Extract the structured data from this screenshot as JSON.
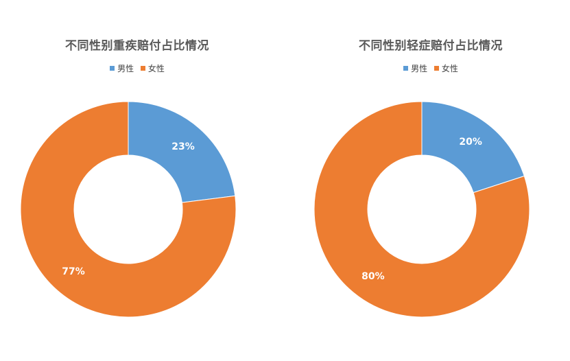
{
  "colors": {
    "male": "#5B9BD5",
    "female": "#ED7D31"
  },
  "chart_data": [
    {
      "type": "pie",
      "variant": "donut",
      "title": "不同性别重疾赔付占比情况",
      "legend": [
        "男性",
        "女性"
      ],
      "legend_position": "top",
      "categories": [
        "男性",
        "女性"
      ],
      "values": [
        23,
        77
      ],
      "labels": [
        "23%",
        "77%"
      ]
    },
    {
      "type": "pie",
      "variant": "donut",
      "title": "不同性别轻症赔付占比情况",
      "legend": [
        "男性",
        "女性"
      ],
      "legend_position": "top",
      "categories": [
        "男性",
        "女性"
      ],
      "values": [
        20,
        80
      ],
      "labels": [
        "20%",
        "80%"
      ]
    }
  ]
}
